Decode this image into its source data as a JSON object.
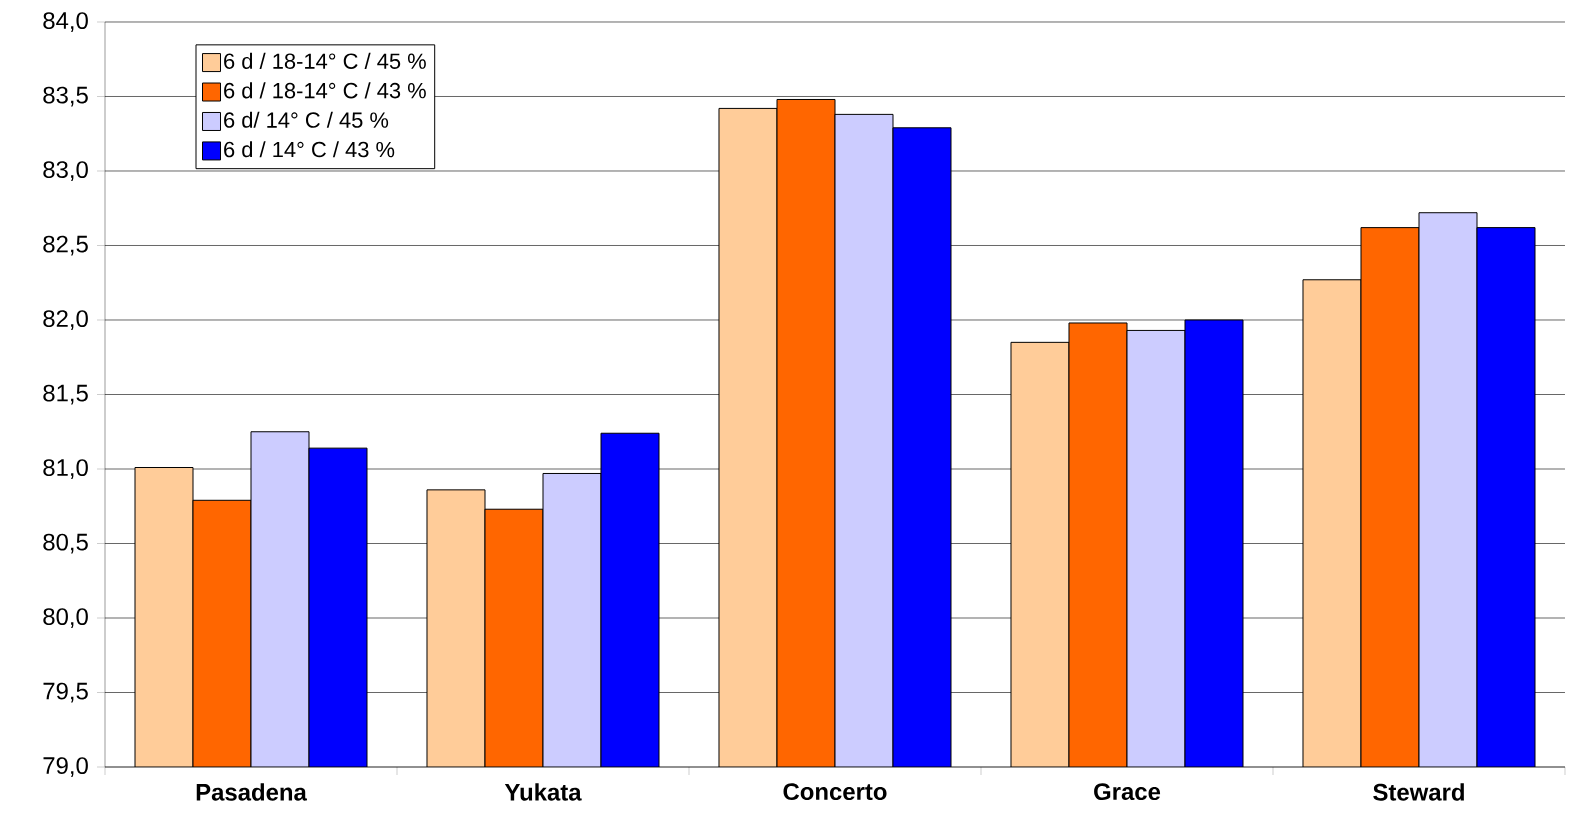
{
  "chart_data": {
    "type": "bar",
    "categories": [
      "Pasadena",
      "Yukata",
      "Concerto",
      "Grace",
      "Steward"
    ],
    "series": [
      {
        "name": "6 d / 18-14° C / 45 %",
        "color": "#ffcc99",
        "values": [
          81.01,
          80.86,
          83.42,
          81.85,
          82.27
        ]
      },
      {
        "name": "6 d / 18-14° C / 43 %",
        "color": "#ff6600",
        "values": [
          80.79,
          80.73,
          83.48,
          81.98,
          82.62
        ]
      },
      {
        "name": "6 d/ 14° C / 45 %",
        "color": "#ccccff",
        "values": [
          81.25,
          80.97,
          83.38,
          81.93,
          82.72
        ]
      },
      {
        "name": "6 d / 14° C / 43 %",
        "color": "#0000ff",
        "values": [
          81.14,
          81.24,
          83.29,
          82.0,
          82.62
        ]
      }
    ],
    "ylim": [
      79,
      84
    ],
    "yticks": [
      {
        "value": 79,
        "label": "79,0"
      },
      {
        "value": 79.5,
        "label": "79,5"
      },
      {
        "value": 80,
        "label": "80,0"
      },
      {
        "value": 80.5,
        "label": "80,5"
      },
      {
        "value": 81,
        "label": "81,0"
      },
      {
        "value": 81.5,
        "label": "81,5"
      },
      {
        "value": 82,
        "label": "82,0"
      },
      {
        "value": 82.5,
        "label": "82,5"
      },
      {
        "value": 83,
        "label": "83,0"
      },
      {
        "value": 83.5,
        "label": "83,5"
      },
      {
        "value": 84,
        "label": "84,0"
      }
    ],
    "grid": "y",
    "legend": "top left"
  }
}
